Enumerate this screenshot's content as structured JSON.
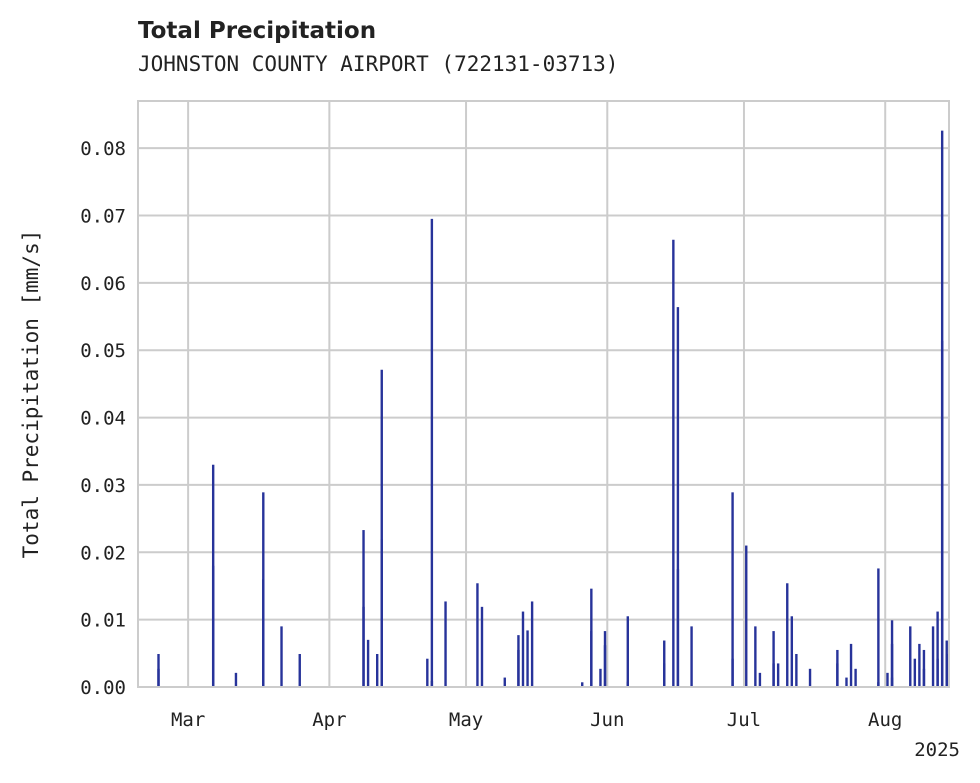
{
  "chart_data": {
    "type": "bar",
    "title": "Total Precipitation",
    "subtitle": "JOHNSTON COUNTY AIRPORT (722131-03713)",
    "ylabel": "Total Precipitation [mm/s]",
    "xlabel": "",
    "year_label": "2025",
    "ylim": [
      0,
      0.087
    ],
    "y_ticks": [
      "0.00",
      "0.01",
      "0.02",
      "0.03",
      "0.04",
      "0.05",
      "0.06",
      "0.07",
      "0.08"
    ],
    "x_ticks": [
      {
        "label": "Mar",
        "date": "2025-03-01"
      },
      {
        "label": "Apr",
        "date": "2025-04-01"
      },
      {
        "label": "May",
        "date": "2025-05-01"
      },
      {
        "label": "Jun",
        "date": "2025-06-01"
      },
      {
        "label": "Jul",
        "date": "2025-07-01"
      },
      {
        "label": "Aug",
        "date": "2025-08-01"
      }
    ],
    "x_range": [
      "2025-02-18",
      "2025-08-14"
    ],
    "grid": true,
    "bar_color": "#27339a",
    "points": [
      [
        "2025-02-22",
        0.0049
      ],
      [
        "2025-02-22",
        0.0027
      ],
      [
        "2025-03-06",
        0.033
      ],
      [
        "2025-03-06",
        0.018
      ],
      [
        "2025-03-11",
        0.0021
      ],
      [
        "2025-03-17",
        0.016
      ],
      [
        "2025-03-17",
        0.0289
      ],
      [
        "2025-03-17",
        0.007
      ],
      [
        "2025-03-21",
        0.009
      ],
      [
        "2025-03-25",
        0.0049
      ],
      [
        "2025-04-08",
        0.0233
      ],
      [
        "2025-04-08",
        0.0119
      ],
      [
        "2025-04-09",
        0.007
      ],
      [
        "2025-04-11",
        0.0049
      ],
      [
        "2025-04-12",
        0.007
      ],
      [
        "2025-04-12",
        0.0471
      ],
      [
        "2025-04-12",
        0.0219
      ],
      [
        "2025-04-22",
        0.0042
      ],
      [
        "2025-04-23",
        0.0695
      ],
      [
        "2025-04-23",
        0.0009
      ],
      [
        "2025-04-26",
        0.0127
      ],
      [
        "2025-05-03",
        0.0154
      ],
      [
        "2025-05-04",
        0.0119
      ],
      [
        "2025-05-09",
        0.0014
      ],
      [
        "2025-05-12",
        0.0055
      ],
      [
        "2025-05-12",
        0.0077
      ],
      [
        "2025-05-13",
        0.0112
      ],
      [
        "2025-05-14",
        0.0084
      ],
      [
        "2025-05-15",
        0.0127
      ],
      [
        "2025-05-26",
        0.0007
      ],
      [
        "2025-05-28",
        0.0146
      ],
      [
        "2025-05-28",
        0.0083
      ],
      [
        "2025-05-30",
        0.0027
      ],
      [
        "2025-05-31",
        0.0083
      ],
      [
        "2025-05-31",
        0.0062
      ],
      [
        "2025-06-05",
        0.0105
      ],
      [
        "2025-06-05",
        0.0008
      ],
      [
        "2025-06-13",
        0.0069
      ],
      [
        "2025-06-13",
        0.0035
      ],
      [
        "2025-06-15",
        0.0664
      ],
      [
        "2025-06-16",
        0.0175
      ],
      [
        "2025-06-16",
        0.0564
      ],
      [
        "2025-06-19",
        0.009
      ],
      [
        "2025-06-28",
        0.0289
      ],
      [
        "2025-06-28",
        0.0042
      ],
      [
        "2025-07-01",
        0.021
      ],
      [
        "2025-07-03",
        0.009
      ],
      [
        "2025-07-04",
        0.0021
      ],
      [
        "2025-07-07",
        0.0035
      ],
      [
        "2025-07-07",
        0.0083
      ],
      [
        "2025-07-08",
        0.0035
      ],
      [
        "2025-07-10",
        0.0154
      ],
      [
        "2025-07-11",
        0.0105
      ],
      [
        "2025-07-12",
        0.0049
      ],
      [
        "2025-07-15",
        0.0027
      ],
      [
        "2025-07-21",
        0.0035
      ],
      [
        "2025-07-21",
        0.0055
      ],
      [
        "2025-07-23",
        0.0014
      ],
      [
        "2025-07-24",
        0.0064
      ],
      [
        "2025-07-25",
        0.0027
      ],
      [
        "2025-07-30",
        0.0176
      ],
      [
        "2025-07-30",
        0.0007
      ],
      [
        "2025-08-01",
        0.0021
      ],
      [
        "2025-08-02",
        0.0064
      ],
      [
        "2025-08-02",
        0.0099
      ],
      [
        "2025-08-02",
        0.0014
      ],
      [
        "2025-08-06",
        0.009
      ],
      [
        "2025-08-07",
        0.0042
      ],
      [
        "2025-08-08",
        0.0064
      ],
      [
        "2025-08-09",
        0.0027
      ],
      [
        "2025-08-09",
        0.0055
      ],
      [
        "2025-08-11",
        0.009
      ],
      [
        "2025-08-12",
        0.0042
      ],
      [
        "2025-08-12",
        0.0112
      ],
      [
        "2025-08-13",
        0.0826
      ],
      [
        "2025-08-13",
        0.0514
      ],
      [
        "2025-08-14",
        0.0069
      ],
      [
        "2025-08-14",
        0.0049
      ]
    ]
  }
}
